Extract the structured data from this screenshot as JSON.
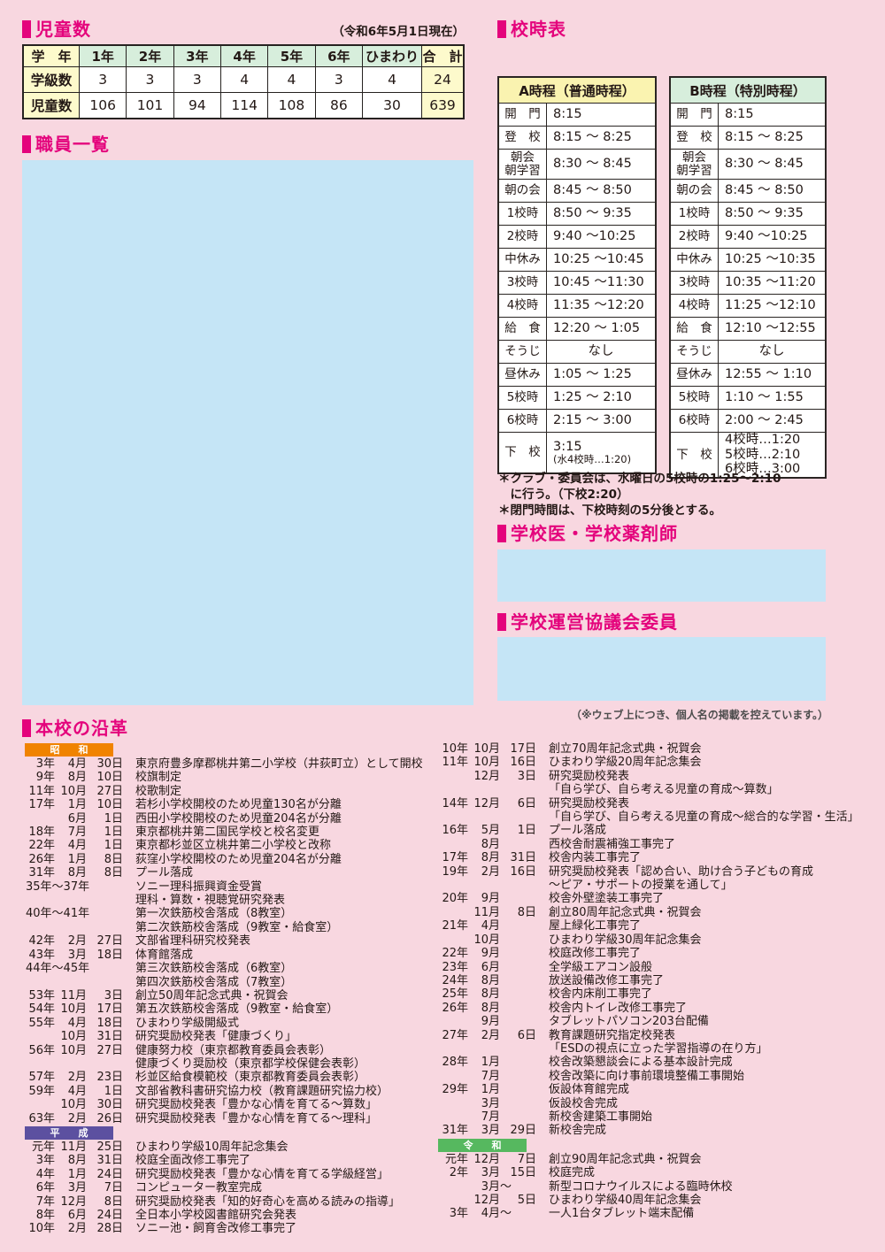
{
  "enrollment": {
    "heading": "児童数",
    "as_of": "（令和6年5月1日現在）",
    "header": [
      "学　年",
      "1年",
      "2年",
      "3年",
      "4年",
      "5年",
      "6年",
      "ひまわり",
      "合　計"
    ],
    "rows": [
      [
        "学級数",
        "3",
        "3",
        "3",
        "4",
        "4",
        "3",
        "4",
        "24"
      ],
      [
        "児童数",
        "106",
        "101",
        "94",
        "114",
        "108",
        "86",
        "30",
        "639"
      ]
    ]
  },
  "staff": {
    "heading": "職員一覧"
  },
  "timetable": {
    "heading": "校時表",
    "tables": [
      {
        "title": "A時程（普通時程）",
        "header_color": "#FAF3B0",
        "rows": [
          [
            "開　門",
            "8:15"
          ],
          [
            "登　校",
            "8:15 ～ 8:25"
          ],
          [
            "朝会\n朝学習",
            "8:30 ～ 8:45"
          ],
          [
            "朝の会",
            "8:45 ～ 8:50"
          ],
          [
            "1校時",
            "8:50 ～ 9:35"
          ],
          [
            "2校時",
            "9:40 ～10:25"
          ],
          [
            "中休み",
            "10:25 ～10:45"
          ],
          [
            "3校時",
            "10:45 ～11:30"
          ],
          [
            "4校時",
            "11:35 ～12:20"
          ],
          [
            "給　食",
            "12:20 ～ 1:05"
          ],
          [
            "そうじ",
            "なし"
          ],
          [
            "昼休み",
            "1:05 ～ 1:25"
          ],
          [
            "5校時",
            "1:25 ～ 2:10"
          ],
          [
            "6校時",
            "2:15 ～ 3:00"
          ],
          [
            "下　校",
            "3:15",
            "(水4校時…1:20)"
          ]
        ]
      },
      {
        "title": "B時程（特別時程）",
        "header_color": "#D7EEDC",
        "rows": [
          [
            "開　門",
            "8:15"
          ],
          [
            "登　校",
            "8:15 ～ 8:25"
          ],
          [
            "朝会\n朝学習",
            "8:30 ～ 8:45"
          ],
          [
            "朝の会",
            "8:45 ～ 8:50"
          ],
          [
            "1校時",
            "8:50 ～ 9:35"
          ],
          [
            "2校時",
            "9:40 ～10:25"
          ],
          [
            "中休み",
            "10:25 ～10:35"
          ],
          [
            "3校時",
            "10:35 ～11:20"
          ],
          [
            "4校時",
            "11:25 ～12:10"
          ],
          [
            "給　食",
            "12:10 ～12:55"
          ],
          [
            "そうじ",
            "なし"
          ],
          [
            "昼休み",
            "12:55 ～ 1:10"
          ],
          [
            "5校時",
            "1:10 ～ 1:55"
          ],
          [
            "6校時",
            "2:00 ～ 2:45"
          ],
          [
            "下　校",
            "4校時…1:20\n5校時…2:10\n6校時…3:00"
          ]
        ]
      }
    ],
    "notes": [
      "＊クラブ・委員会は、水曜日の5校時の1:25～2:10\n　に行う。（下校2:20）",
      "＊閉門時間は、下校時刻の5分後とする。"
    ]
  },
  "doctors": {
    "heading": "学校医・学校薬剤師"
  },
  "council": {
    "heading": "学校運営協議会委員"
  },
  "privacy_note": "（※ウェブ上につき、個人名の掲載を控えています。）",
  "history": {
    "heading": "本校の沿革",
    "columns": [
      {
        "sections": [
          {
            "era": {
              "label": "昭　和",
              "color": "#F08300"
            },
            "entries": [
              {
                "y": "3年",
                "m": "4月",
                "d": "30日",
                "t": "東京府豊多摩郡桃井第二小学校（井荻町立）として開校"
              },
              {
                "y": "9年",
                "m": "8月",
                "d": "10日",
                "t": "校旗制定"
              },
              {
                "y": "11年",
                "m": "10月",
                "d": "27日",
                "t": "校歌制定"
              },
              {
                "y": "17年",
                "m": "1月",
                "d": "10日",
                "t": "若杉小学校開校のため児童130名が分離"
              },
              {
                "y": "",
                "m": "6月",
                "d": "1日",
                "t": "西田小学校開校のため児童204名が分離"
              },
              {
                "y": "18年",
                "m": "7月",
                "d": "1日",
                "t": "東京都桃井第二国民学校と校名変更"
              },
              {
                "y": "22年",
                "m": "4月",
                "d": "1日",
                "t": "東京都杉並区立桃井第二小学校と改称"
              },
              {
                "y": "26年",
                "m": "1月",
                "d": "8日",
                "t": "荻窪小学校開校のため児童204名が分離"
              },
              {
                "y": "31年",
                "m": "8月",
                "d": "8日",
                "t": "プール落成"
              },
              {
                "span": "35年～37年",
                "t": "ソニー理科振興資金受賞"
              },
              {
                "t": "理科・算数・視聴覚研究発表"
              },
              {
                "span": "40年～41年",
                "t": "第一次鉄筋校舎落成（8教室）"
              },
              {
                "t": "第二次鉄筋校舎落成（9教室・給食室）"
              },
              {
                "y": "42年",
                "m": "2月",
                "d": "27日",
                "t": "文部省理科研究校発表"
              },
              {
                "y": "43年",
                "m": "3月",
                "d": "18日",
                "t": "体育館落成"
              },
              {
                "span": "44年～45年",
                "t": "第三次鉄筋校舎落成（6教室）"
              },
              {
                "t": "第四次鉄筋校舎落成（7教室）"
              },
              {
                "y": "53年",
                "m": "11月",
                "d": "3日",
                "t": "創立50周年記念式典・祝賀会"
              },
              {
                "y": "54年",
                "m": "10月",
                "d": "17日",
                "t": "第五次鉄筋校舎落成（9教室・給食室）"
              },
              {
                "y": "55年",
                "m": "4月",
                "d": "18日",
                "t": "ひまわり学級開級式"
              },
              {
                "y": "",
                "m": "10月",
                "d": "31日",
                "t": "研究奨励校発表「健康づくり」"
              },
              {
                "y": "56年",
                "m": "10月",
                "d": "27日",
                "t": "健康努力校（東京都教育委員会表彰）"
              },
              {
                "t": "健康づくり奨励校（東京都学校保健会表彰）"
              },
              {
                "y": "57年",
                "m": "2月",
                "d": "23日",
                "t": "杉並区給食模範校（東京都教育委員会表彰）"
              },
              {
                "y": "59年",
                "m": "4月",
                "d": "1日",
                "t": "文部省教科書研究協力校（教育課題研究協力校）"
              },
              {
                "y": "",
                "m": "10月",
                "d": "30日",
                "t": "研究奨励校発表「豊かな心情を育てる～算数」"
              },
              {
                "y": "63年",
                "m": "2月",
                "d": "26日",
                "t": "研究奨励校発表「豊かな心情を育てる～理科」"
              }
            ]
          },
          {
            "era": {
              "label": "平　成",
              "color": "#5C50A0"
            },
            "entries": [
              {
                "y": "元年",
                "m": "11月",
                "d": "25日",
                "t": "ひまわり学級10周年記念集会"
              },
              {
                "y": "3年",
                "m": "8月",
                "d": "31日",
                "t": "校庭全面改修工事完了"
              },
              {
                "y": "4年",
                "m": "1月",
                "d": "24日",
                "t": "研究奨励校発表「豊かな心情を育てる学級経営」"
              },
              {
                "y": "6年",
                "m": "3月",
                "d": "7日",
                "t": "コンピューター教室完成"
              },
              {
                "y": "7年",
                "m": "12月",
                "d": "8日",
                "t": "研究奨励校発表「知的好奇心を高める読みの指導」"
              },
              {
                "y": "8年",
                "m": "6月",
                "d": "24日",
                "t": "全日本小学校図書館研究会発表"
              },
              {
                "y": "10年",
                "m": "2月",
                "d": "28日",
                "t": "ソニー池・飼育舎改修工事完了"
              }
            ]
          }
        ]
      },
      {
        "sections": [
          {
            "era": null,
            "entries": [
              {
                "y": "10年",
                "m": "10月",
                "d": "17日",
                "t": "創立70周年記念式典・祝賀会"
              },
              {
                "y": "11年",
                "m": "10月",
                "d": "16日",
                "t": "ひまわり学級20周年記念集会"
              },
              {
                "y": "",
                "m": "12月",
                "d": "3日",
                "t": "研究奨励校発表"
              },
              {
                "t": "「自ら学び、自ら考える児童の育成～算数」"
              },
              {
                "y": "14年",
                "m": "12月",
                "d": "6日",
                "t": "研究奨励校発表"
              },
              {
                "t": "「自ら学び、自ら考える児童の育成～総合的な学習・生活」"
              },
              {
                "y": "16年",
                "m": "5月",
                "d": "1日",
                "t": "プール落成"
              },
              {
                "y": "",
                "m": "8月",
                "d": "",
                "t": "西校舎耐震補強工事完了"
              },
              {
                "y": "17年",
                "m": "8月",
                "d": "31日",
                "t": "校舎内装工事完了"
              },
              {
                "y": "19年",
                "m": "2月",
                "d": "16日",
                "t": "研究奨励校発表「認め合い、助け合う子どもの育成"
              },
              {
                "t": "～ピア・サポートの授業を通して」"
              },
              {
                "y": "20年",
                "m": "9月",
                "d": "",
                "t": "校舎外壁塗装工事完了"
              },
              {
                "y": "",
                "m": "11月",
                "d": "8日",
                "t": "創立80周年記念式典・祝賀会"
              },
              {
                "y": "21年",
                "m": "4月",
                "d": "",
                "t": "屋上緑化工事完了"
              },
              {
                "y": "",
                "m": "10月",
                "d": "",
                "t": "ひまわり学級30周年記念集会"
              },
              {
                "y": "22年",
                "m": "9月",
                "d": "",
                "t": "校庭改修工事完了"
              },
              {
                "y": "23年",
                "m": "6月",
                "d": "",
                "t": "全学級エアコン設般"
              },
              {
                "y": "24年",
                "m": "8月",
                "d": "",
                "t": "放送設備改修工事完了"
              },
              {
                "y": "25年",
                "m": "8月",
                "d": "",
                "t": "校舎内床削工事完了"
              },
              {
                "y": "26年",
                "m": "8月",
                "d": "",
                "t": "校舎内トイレ改修工事完了"
              },
              {
                "y": "",
                "m": "9月",
                "d": "",
                "t": "タブレットパソコン203台配備"
              },
              {
                "y": "27年",
                "m": "2月",
                "d": "6日",
                "t": "教育課題研究指定校発表"
              },
              {
                "t": "「ESDの視点に立った学習指導の在り方」"
              },
              {
                "y": "28年",
                "m": "1月",
                "d": "",
                "t": "校舎改築懇談会による基本設計完成"
              },
              {
                "y": "",
                "m": "7月",
                "d": "",
                "t": "校舎改築に向け事前環境整備工事開始"
              },
              {
                "y": "29年",
                "m": "1月",
                "d": "",
                "t": "仮設体育館完成"
              },
              {
                "y": "",
                "m": "3月",
                "d": "",
                "t": "仮設校舎完成"
              },
              {
                "y": "",
                "m": "7月",
                "d": "",
                "t": "新校舎建築工事開始"
              },
              {
                "y": "31年",
                "m": "3月",
                "d": "29日",
                "t": "新校舎完成"
              }
            ]
          },
          {
            "era": {
              "label": "令　和",
              "color": "#56B85F"
            },
            "entries": [
              {
                "y": "元年",
                "m": "12月",
                "d": "7日",
                "t": "創立90周年記念式典・祝賀会"
              },
              {
                "y": "2年",
                "m": "3月",
                "d": "15日",
                "t": "校庭完成"
              },
              {
                "y": "",
                "m": "3月",
                "d": "～",
                "t": "新型コロナウイルスによる臨時休校"
              },
              {
                "y": "",
                "m": "12月",
                "d": "5日",
                "t": "ひまわり学級40周年記念集会"
              },
              {
                "y": "3年",
                "m": "4月",
                "d": "～",
                "t": "一人1台タブレット端末配備"
              }
            ]
          }
        ]
      }
    ]
  }
}
